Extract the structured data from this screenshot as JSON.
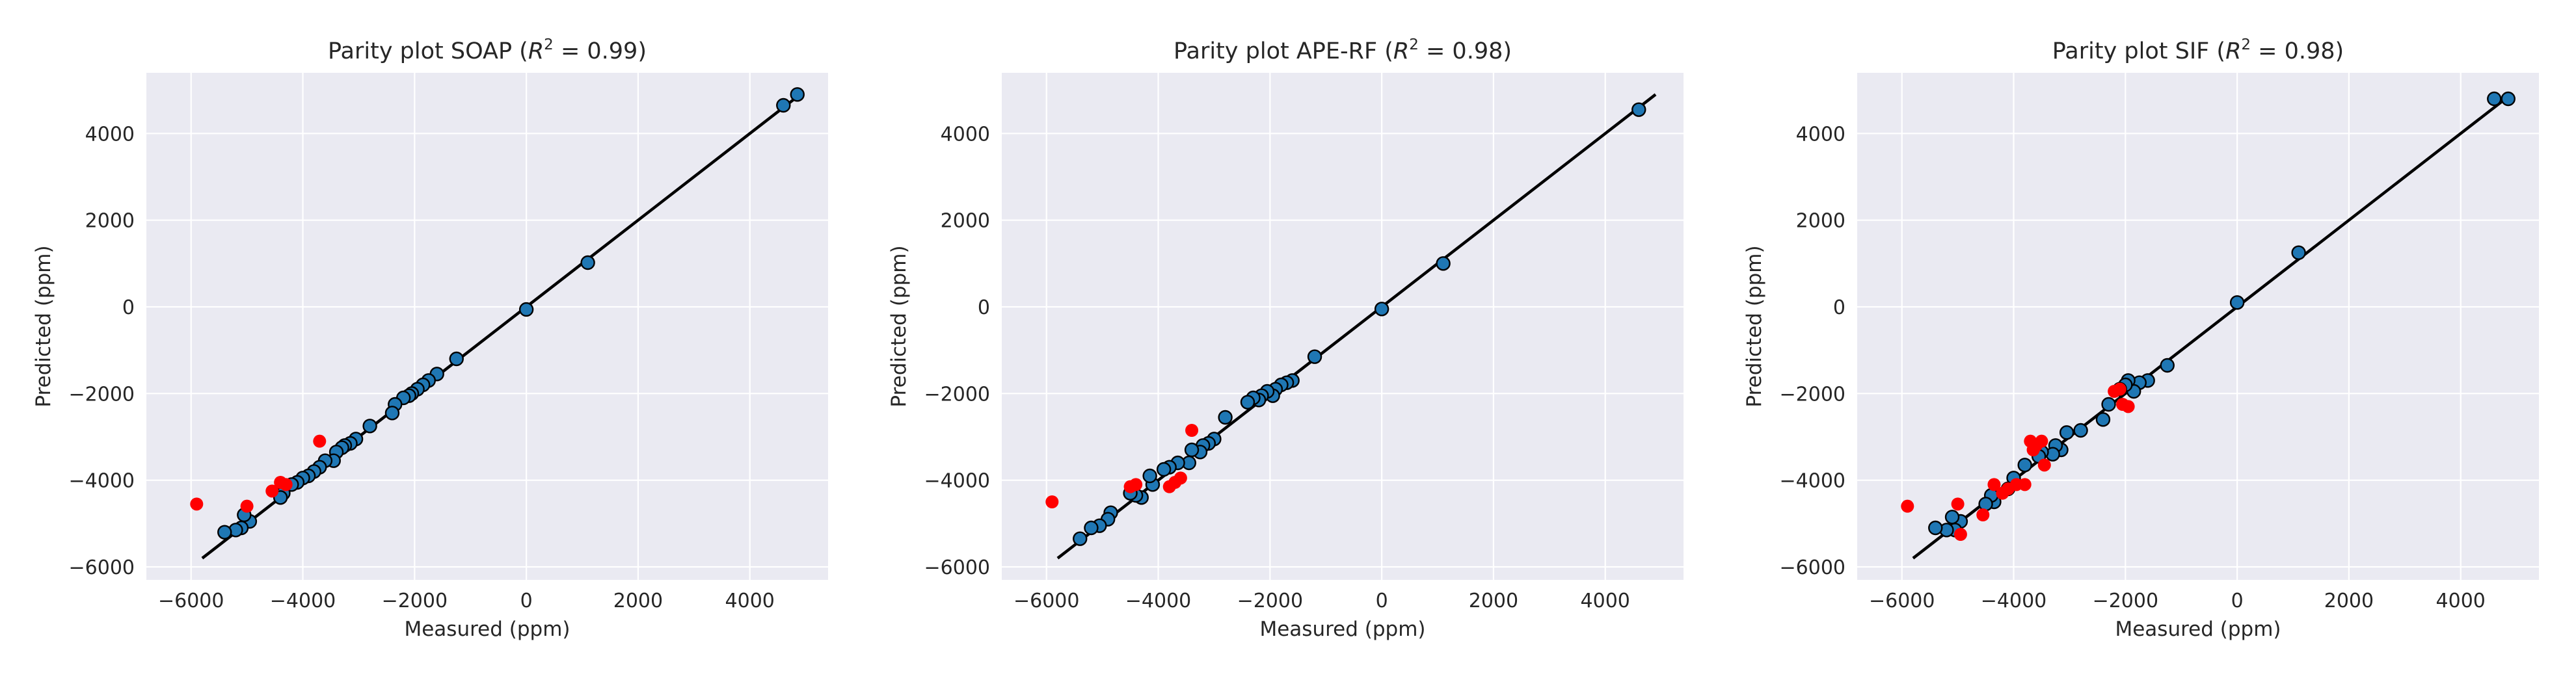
{
  "chart_data": [
    {
      "type": "scatter",
      "title": "Parity plot SOAP",
      "r2": "0.99",
      "xlabel": "Measured (ppm)",
      "ylabel": "Predicted (ppm)",
      "xlim": [
        -6800,
        5400
      ],
      "ylim": [
        -6300,
        5400
      ],
      "xticks": [
        -6000,
        -4000,
        -2000,
        0,
        2000,
        4000
      ],
      "yticks": [
        -6000,
        -4000,
        -2000,
        0,
        2000,
        4000
      ],
      "grid": true,
      "parity_line": [
        -5800,
        4800
      ],
      "series": [
        {
          "color": "#1f77b4",
          "points": [
            [
              4850,
              4900
            ],
            [
              4600,
              4650
            ],
            [
              1100,
              1020
            ],
            [
              0,
              -60
            ],
            [
              -1250,
              -1200
            ],
            [
              -1600,
              -1550
            ],
            [
              -1750,
              -1700
            ],
            [
              -1850,
              -1800
            ],
            [
              -1950,
              -1900
            ],
            [
              -2050,
              -2000
            ],
            [
              -2100,
              -2050
            ],
            [
              -2200,
              -2100
            ],
            [
              -2350,
              -2250
            ],
            [
              -2400,
              -2450
            ],
            [
              -2800,
              -2750
            ],
            [
              -3050,
              -3050
            ],
            [
              -3150,
              -3150
            ],
            [
              -3250,
              -3200
            ],
            [
              -3300,
              -3250
            ],
            [
              -3400,
              -3350
            ],
            [
              -3450,
              -3550
            ],
            [
              -3600,
              -3550
            ],
            [
              -3700,
              -3700
            ],
            [
              -3800,
              -3800
            ],
            [
              -3900,
              -3900
            ],
            [
              -4000,
              -3950
            ],
            [
              -4100,
              -4050
            ],
            [
              -4200,
              -4100
            ],
            [
              -4350,
              -4300
            ],
            [
              -4400,
              -4400
            ],
            [
              -4950,
              -4950
            ],
            [
              -5050,
              -4800
            ],
            [
              -5100,
              -5100
            ],
            [
              -5200,
              -5150
            ],
            [
              -5400,
              -5200
            ]
          ]
        },
        {
          "color": "#ff0000",
          "points": [
            [
              -5900,
              -4550
            ],
            [
              -5000,
              -4600
            ],
            [
              -4550,
              -4250
            ],
            [
              -4400,
              -4050
            ],
            [
              -4300,
              -4100
            ],
            [
              -3700,
              -3100
            ]
          ]
        }
      ]
    },
    {
      "type": "scatter",
      "title": "Parity plot APE-RF",
      "r2": "0.98",
      "xlabel": "Measured (ppm)",
      "ylabel": "Predicted (ppm)",
      "xlim": [
        -6800,
        5400
      ],
      "ylim": [
        -6300,
        5400
      ],
      "xticks": [
        -6000,
        -4000,
        -2000,
        0,
        2000,
        4000
      ],
      "yticks": [
        -6000,
        -4000,
        -2000,
        0,
        2000,
        4000
      ],
      "grid": true,
      "parity_line": [
        -5800,
        4900
      ],
      "series": [
        {
          "color": "#1f77b4",
          "points": [
            [
              4600,
              4550
            ],
            [
              1100,
              1000
            ],
            [
              0,
              -50
            ],
            [
              -1200,
              -1150
            ],
            [
              -1600,
              -1700
            ],
            [
              -1700,
              -1750
            ],
            [
              -1800,
              -1800
            ],
            [
              -1900,
              -1900
            ],
            [
              -1950,
              -2050
            ],
            [
              -2050,
              -1950
            ],
            [
              -2150,
              -2050
            ],
            [
              -2200,
              -2150
            ],
            [
              -2300,
              -2100
            ],
            [
              -2400,
              -2200
            ],
            [
              -2800,
              -2550
            ],
            [
              -3000,
              -3050
            ],
            [
              -3100,
              -3150
            ],
            [
              -3200,
              -3200
            ],
            [
              -3250,
              -3350
            ],
            [
              -3400,
              -3300
            ],
            [
              -3450,
              -3600
            ],
            [
              -3650,
              -3600
            ],
            [
              -3800,
              -3700
            ],
            [
              -3900,
              -3750
            ],
            [
              -4100,
              -4100
            ],
            [
              -4150,
              -3900
            ],
            [
              -4300,
              -4400
            ],
            [
              -4400,
              -4350
            ],
            [
              -4500,
              -4300
            ],
            [
              -4850,
              -4750
            ],
            [
              -4900,
              -4900
            ],
            [
              -5050,
              -5050
            ],
            [
              -5200,
              -5100
            ],
            [
              -5400,
              -5350
            ]
          ]
        },
        {
          "color": "#ff0000",
          "points": [
            [
              -5900,
              -4500
            ],
            [
              -4500,
              -4150
            ],
            [
              -4400,
              -4100
            ],
            [
              -3800,
              -4150
            ],
            [
              -3700,
              -4050
            ],
            [
              -3600,
              -3950
            ],
            [
              -3400,
              -2850
            ]
          ]
        }
      ]
    },
    {
      "type": "scatter",
      "title": "Parity plot SIF",
      "r2": "0.98",
      "xlabel": "Measured (ppm)",
      "ylabel": "Predicted (ppm)",
      "xlim": [
        -6800,
        5400
      ],
      "ylim": [
        -6300,
        5400
      ],
      "xticks": [
        -6000,
        -4000,
        -2000,
        0,
        2000,
        4000
      ],
      "yticks": [
        -6000,
        -4000,
        -2000,
        0,
        2000,
        4000
      ],
      "grid": true,
      "parity_line": [
        -5800,
        4800
      ],
      "series": [
        {
          "color": "#1f77b4",
          "points": [
            [
              4850,
              4800
            ],
            [
              4600,
              4800
            ],
            [
              1100,
              1250
            ],
            [
              0,
              100
            ],
            [
              -1250,
              -1350
            ],
            [
              -1600,
              -1700
            ],
            [
              -1750,
              -1750
            ],
            [
              -1850,
              -1950
            ],
            [
              -1950,
              -1700
            ],
            [
              -2000,
              -1800
            ],
            [
              -2100,
              -1900
            ],
            [
              -2300,
              -2250
            ],
            [
              -2400,
              -2600
            ],
            [
              -2800,
              -2850
            ],
            [
              -3050,
              -2900
            ],
            [
              -3150,
              -3300
            ],
            [
              -3250,
              -3200
            ],
            [
              -3300,
              -3400
            ],
            [
              -3500,
              -3350
            ],
            [
              -3550,
              -3450
            ],
            [
              -3800,
              -3650
            ],
            [
              -4000,
              -3950
            ],
            [
              -4100,
              -4200
            ],
            [
              -4350,
              -4500
            ],
            [
              -4400,
              -4350
            ],
            [
              -4500,
              -4550
            ],
            [
              -4950,
              -4950
            ],
            [
              -5050,
              -5150
            ],
            [
              -5100,
              -4850
            ],
            [
              -5200,
              -5150
            ],
            [
              -5400,
              -5100
            ]
          ]
        },
        {
          "color": "#ff0000",
          "points": [
            [
              -5900,
              -4600
            ],
            [
              -5000,
              -4550
            ],
            [
              -4950,
              -5250
            ],
            [
              -4550,
              -4800
            ],
            [
              -4350,
              -4100
            ],
            [
              -4200,
              -4300
            ],
            [
              -4100,
              -4200
            ],
            [
              -3950,
              -4100
            ],
            [
              -3800,
              -4100
            ],
            [
              -3700,
              -3100
            ],
            [
              -3650,
              -3300
            ],
            [
              -3600,
              -3200
            ],
            [
              -3500,
              -3100
            ],
            [
              -3450,
              -3650
            ],
            [
              -2200,
              -1950
            ],
            [
              -2100,
              -1900
            ],
            [
              -2050,
              -2250
            ],
            [
              -1950,
              -2300
            ]
          ]
        }
      ]
    }
  ]
}
